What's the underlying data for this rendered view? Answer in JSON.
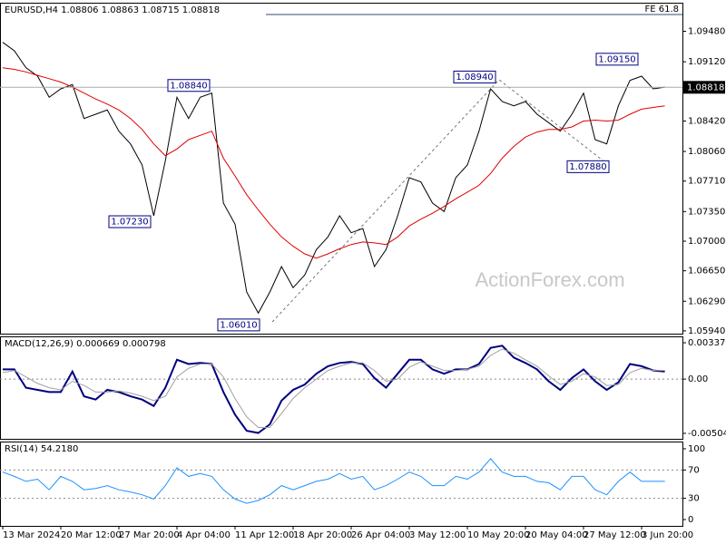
{
  "chart_data": [
    {
      "type": "line",
      "title": "EURUSD,H4  1.08806 1.08863 1.08715 1.08818",
      "watermark": "ActionForex.com",
      "fe_label": "FE 61.8",
      "ylim": [
        1.05907,
        1.09807
      ],
      "yticks": [
        {
          "value": 1.0948,
          "label": "1.09480"
        },
        {
          "value": 1.0912,
          "label": "1.09120"
        },
        {
          "value": 1.0842,
          "label": "1.08420"
        },
        {
          "value": 1.0806,
          "label": "1.08060"
        },
        {
          "value": 1.0771,
          "label": "1.07710"
        },
        {
          "value": 1.0735,
          "label": "1.07350"
        },
        {
          "value": 1.07,
          "label": "1.07000"
        },
        {
          "value": 1.0665,
          "label": "1.06650"
        },
        {
          "value": 1.0629,
          "label": "1.06290"
        },
        {
          "value": 1.0594,
          "label": "1.05940"
        }
      ],
      "last_price": 1.08818,
      "annotations": [
        {
          "value": 1.0884,
          "label": "1.08840"
        },
        {
          "value": 1.0723,
          "label": "1.07230"
        },
        {
          "value": 1.0601,
          "label": "1.06010"
        },
        {
          "value": 1.0894,
          "label": "1.08940"
        },
        {
          "value": 1.0915,
          "label": "1.09150"
        },
        {
          "value": 1.0788,
          "label": "1.07880"
        }
      ],
      "series": [
        {
          "color": "#000000",
          "values": [
            1.0935,
            1.0925,
            1.0905,
            1.0895,
            1.087,
            1.088,
            1.0885,
            1.0845,
            1.085,
            1.0855,
            1.083,
            1.0815,
            1.079,
            1.073,
            1.0795,
            1.087,
            1.0845,
            1.087,
            1.0875,
            1.0745,
            1.072,
            1.064,
            1.0615,
            1.064,
            1.067,
            1.0645,
            1.066,
            1.069,
            1.0705,
            1.073,
            1.071,
            1.0715,
            1.067,
            1.069,
            1.073,
            1.0775,
            1.077,
            1.0745,
            1.0735,
            1.0775,
            1.079,
            1.083,
            1.088,
            1.0865,
            1.086,
            1.0865,
            1.085,
            1.084,
            1.083,
            1.085,
            1.0875,
            1.082,
            1.0815,
            1.086,
            1.089,
            1.0895,
            1.088,
            1.0882
          ]
        },
        {
          "color": "#e00000",
          "values": [
            1.0905,
            1.0903,
            1.09,
            1.0896,
            1.0892,
            1.0888,
            1.0882,
            1.0875,
            1.0868,
            1.0862,
            1.0855,
            1.0845,
            1.0832,
            1.0815,
            1.0801,
            1.0809,
            1.082,
            1.0825,
            1.083,
            1.0798,
            1.0777,
            1.0755,
            1.0737,
            1.072,
            1.0705,
            1.0694,
            1.0685,
            1.068,
            1.0685,
            1.0691,
            1.0696,
            1.0699,
            1.0698,
            1.0696,
            1.0705,
            1.0718,
            1.0726,
            1.0733,
            1.0741,
            1.075,
            1.0758,
            1.0766,
            1.078,
            1.0798,
            1.0812,
            1.0823,
            1.0829,
            1.0832,
            1.0832,
            1.0835,
            1.0842,
            1.0843,
            1.0842,
            1.0843,
            1.085,
            1.0856,
            1.0858,
            1.086
          ]
        }
      ]
    },
    {
      "type": "line",
      "title": "MACD(12,26,9) 0.000669 0.000798",
      "ylim": [
        -0.00555,
        0.003885
      ],
      "yticks": [
        0.003375,
        {
          "value": 0,
          "label": "0.00"
        },
        -0.00504
      ],
      "levels": [
        0
      ],
      "series": [
        {
          "color": "#000080",
          "values": [
            0.0009,
            0.0009,
            -0.0008,
            -0.001,
            -0.0012,
            -0.0012,
            0.0007,
            -0.0016,
            -0.0019,
            -0.001,
            -0.0012,
            -0.0016,
            -0.0019,
            -0.0025,
            -0.0008,
            0.0018,
            0.0014,
            0.0015,
            0.0014,
            -0.0012,
            -0.0033,
            -0.0048,
            -0.005,
            -0.0042,
            -0.002,
            -0.001,
            -0.0005,
            0.0005,
            0.0012,
            0.0015,
            0.0016,
            0.0014,
            0.0001,
            -0.0008,
            0.0005,
            0.0018,
            0.0018,
            0.0009,
            0.0005,
            0.0009,
            0.0009,
            0.0014,
            0.0029,
            0.0031,
            0.002,
            0.0015,
            0.0009,
            -0.0002,
            -0.001,
            0.0001,
            0.0009,
            -0.0002,
            -0.001,
            -0.0003,
            0.0014,
            0.0012,
            0.0008,
            0.0007
          ]
        },
        {
          "color": "#a0a0a0",
          "values": [
            0.0006,
            0.0008,
            0.0002,
            -0.0004,
            -0.0008,
            -0.001,
            -0.0002,
            -0.0006,
            -0.0012,
            -0.0012,
            -0.0011,
            -0.0013,
            -0.0016,
            -0.002,
            -0.0016,
            0.0002,
            0.001,
            0.0014,
            0.0014,
            0.0002,
            -0.0018,
            -0.0035,
            -0.0045,
            -0.0045,
            -0.0032,
            -0.0018,
            -0.0008,
            0,
            0.0008,
            0.0012,
            0.0015,
            0.0015,
            0.0008,
            -0.0002,
            0,
            0.0011,
            0.0016,
            0.0012,
            0.0008,
            0.0008,
            0.0009,
            0.0012,
            0.0022,
            0.0028,
            0.0024,
            0.0018,
            0.0012,
            0.0003,
            -0.0005,
            -0.0002,
            0.0005,
            0.0002,
            -0.0006,
            -0.0005,
            0.0006,
            0.001,
            0.0008,
            0.0008
          ]
        }
      ]
    },
    {
      "type": "line",
      "title": "RSI(14) 54.2180",
      "ylim": [
        -8.9,
        108.9
      ],
      "yticks": [
        100,
        70,
        30,
        0
      ],
      "levels": [
        70,
        30
      ],
      "categories": [
        "13 Mar 2024",
        null,
        null,
        null,
        null,
        "20 Mar 12:00",
        null,
        null,
        null,
        null,
        "27 Mar 20:00",
        null,
        null,
        null,
        null,
        "4 Apr 04:00",
        null,
        null,
        null,
        null,
        "11 Apr 12:00",
        null,
        null,
        null,
        null,
        "18 Apr 20:00",
        null,
        null,
        null,
        null,
        "26 Apr 04:00",
        null,
        null,
        null,
        null,
        "3 May 12:00",
        null,
        null,
        null,
        null,
        "10 May 20:00",
        null,
        null,
        null,
        null,
        "20 May 04:00",
        null,
        null,
        null,
        null,
        "27 May 12:00",
        null,
        null,
        null,
        null,
        "3 Jun 20:00",
        null,
        null
      ],
      "series": [
        {
          "color": "#1e90ff",
          "values": [
            67,
            61,
            54,
            57,
            42,
            61,
            54,
            42,
            44,
            48,
            42,
            39,
            35,
            29,
            48,
            73,
            61,
            65,
            61,
            42,
            29,
            23,
            27,
            35,
            48,
            42,
            48,
            54,
            57,
            65,
            57,
            61,
            42,
            48,
            57,
            67,
            61,
            48,
            48,
            61,
            57,
            67,
            86,
            67,
            61,
            61,
            54,
            52,
            42,
            61,
            61,
            42,
            35,
            54,
            67,
            54,
            54,
            54
          ]
        }
      ]
    }
  ]
}
